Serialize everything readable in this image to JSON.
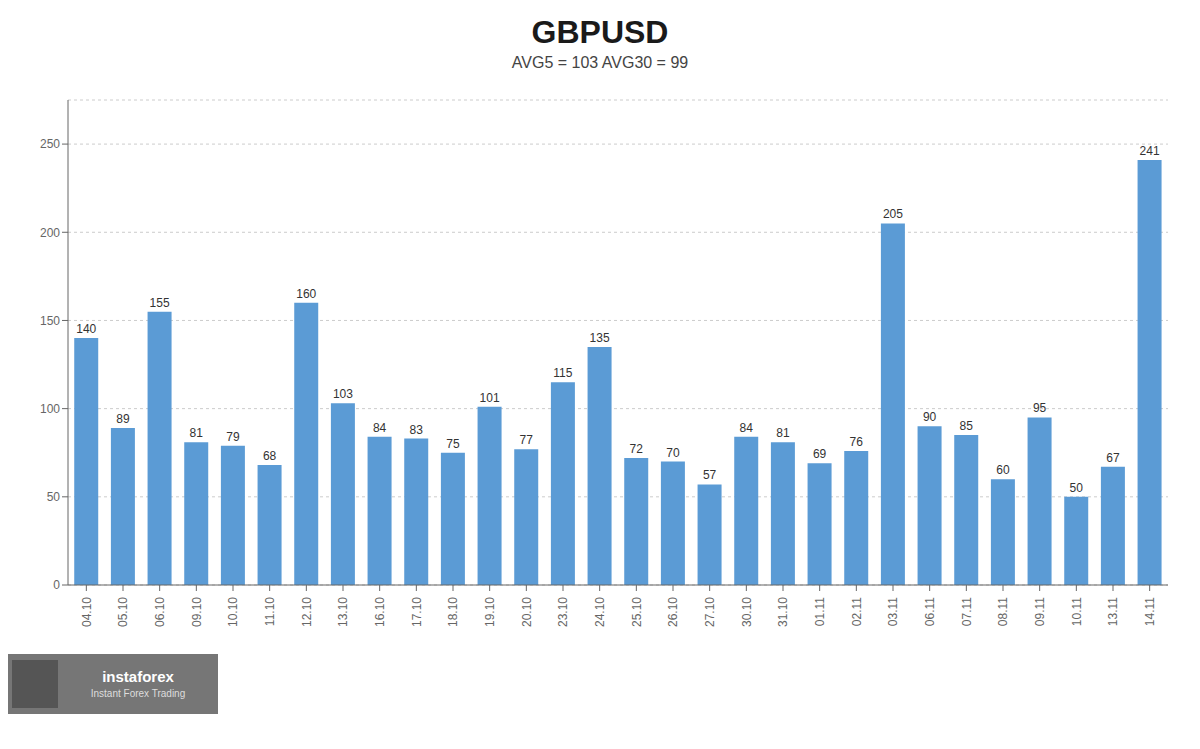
{
  "chart_data": {
    "type": "bar",
    "title": "GBPUSD",
    "subtitle": "AVG5 = 103  AVG30 = 99",
    "categories": [
      "04.10",
      "05.10",
      "06.10",
      "09.10",
      "10.10",
      "11.10",
      "12.10",
      "13.10",
      "16.10",
      "17.10",
      "18.10",
      "19.10",
      "20.10",
      "23.10",
      "24.10",
      "25.10",
      "26.10",
      "27.10",
      "30.10",
      "31.10",
      "01.11",
      "02.11",
      "03.11",
      "06.11",
      "07.11",
      "08.11",
      "09.11",
      "10.11",
      "13.11",
      "14.11"
    ],
    "values": [
      140,
      89,
      155,
      81,
      79,
      68,
      160,
      103,
      84,
      83,
      75,
      101,
      77,
      115,
      135,
      72,
      70,
      57,
      84,
      81,
      69,
      76,
      205,
      90,
      85,
      60,
      95,
      50,
      67,
      241
    ],
    "color": "#5B9BD5",
    "ylim": [
      0,
      275
    ],
    "yticks": [
      0,
      50,
      100,
      150,
      200,
      250
    ],
    "grid": true,
    "data_labels": true,
    "annotations": [
      "instaforex",
      "Instant Forex Trading"
    ]
  }
}
